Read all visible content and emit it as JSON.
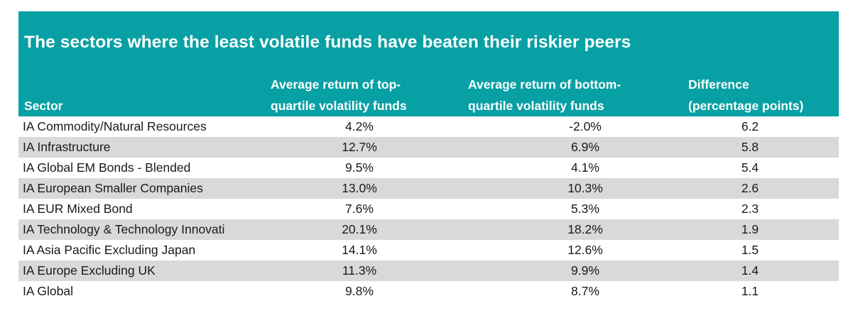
{
  "chart_data": {
    "type": "table",
    "title": "The sectors where the least volatile funds have beaten their riskier peers",
    "columns": [
      "Sector",
      "Average return of top-\nquartile volatility funds",
      "Average return of bottom-\nquartile volatility funds",
      "Difference\n(percentage points)"
    ],
    "rows": [
      [
        "IA Commodity/Natural Resources",
        "4.2%",
        "-2.0%",
        "6.2"
      ],
      [
        "IA Infrastructure",
        "12.7%",
        "6.9%",
        "5.8"
      ],
      [
        "IA Global EM Bonds - Blended",
        "9.5%",
        "4.1%",
        "5.4"
      ],
      [
        "IA European Smaller Companies",
        "13.0%",
        "10.3%",
        "2.6"
      ],
      [
        "IA EUR Mixed Bond",
        "7.6%",
        "5.3%",
        "2.3"
      ],
      [
        "IA Technology & Technology Innovati",
        "20.1%",
        "18.2%",
        "1.9"
      ],
      [
        "IA Asia Pacific Excluding Japan",
        "14.1%",
        "12.6%",
        "1.5"
      ],
      [
        "IA Europe Excluding UK",
        "11.3%",
        "9.9%",
        "1.4"
      ],
      [
        "IA Global",
        "9.8%",
        "8.7%",
        "1.1"
      ]
    ]
  },
  "colors": {
    "header_bg": "#07a0a4",
    "header_text": "#ffffff",
    "stripe_bg": "#d9d9d9",
    "body_text": "#1a1a1a"
  }
}
